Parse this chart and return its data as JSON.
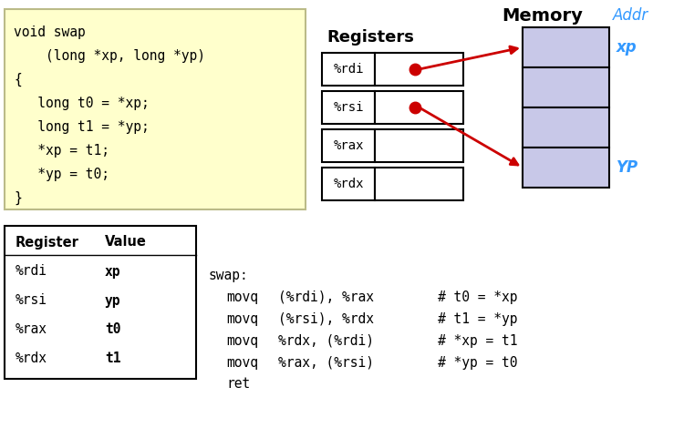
{
  "bg_color": "#ffffff",
  "code_box_color": "#ffffcc",
  "memory_box_color": "#c8c8e8",
  "memory_label": "Memory",
  "addr_label": "Addr",
  "registers_label": "Registers",
  "register_names": [
    "%rdi",
    "%rsi",
    "%rax",
    "%rdx"
  ],
  "code_lines": [
    "void swap",
    "    (long *xp, long *yp)",
    "{",
    "   long t0 = *xp;",
    "   long t1 = *yp;",
    "   *xp = t1;",
    "   *yp = t0;",
    "}"
  ],
  "table_headers": [
    "Register",
    "Value"
  ],
  "table_rows": [
    [
      "%rdi",
      "xp"
    ],
    [
      "%rsi",
      "yp"
    ],
    [
      "%rax",
      "t0"
    ],
    [
      "%rdx",
      "t1"
    ]
  ],
  "asm_col1": [
    "swap:",
    "movq",
    "movq",
    "movq",
    "movq",
    "ret"
  ],
  "asm_col2": [
    "",
    "(%rdi), %rax",
    "(%rsi), %rdx",
    "%rdx, (%rdi)",
    "%rax, (%rsi)",
    ""
  ],
  "asm_col3": [
    "",
    "# t0 = *xp",
    "# t1 = *yp",
    "# *xp = t1",
    "# *yp = t0",
    ""
  ],
  "arrow_color": "#cc0000",
  "cyan_color": "#3399ff"
}
